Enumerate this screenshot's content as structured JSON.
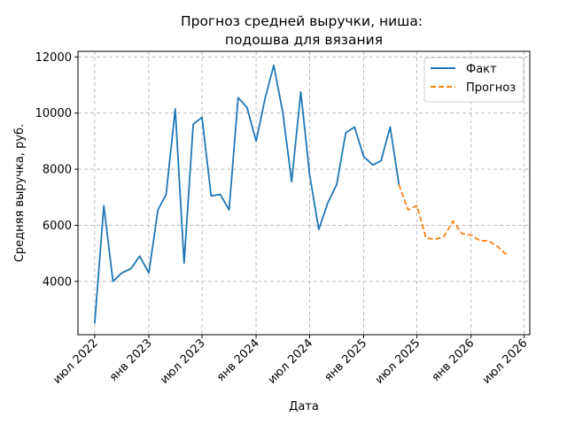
{
  "chart_data": {
    "type": "line",
    "title": "Прогноз средней выручки, ниша:\nподошва для вязания",
    "xlabel": "Дата",
    "ylabel": "Средняя выручка, руб.",
    "xlim": [
      "2022-05-05",
      "2026-07-20"
    ],
    "ylim": [
      2100,
      12200
    ],
    "yticks": [
      4000,
      6000,
      8000,
      10000,
      12000
    ],
    "xticks": [
      {
        "date": "2022-07-01",
        "label": "июл 2022"
      },
      {
        "date": "2023-01-01",
        "label": "янв 2023"
      },
      {
        "date": "2023-07-01",
        "label": "июл 2023"
      },
      {
        "date": "2024-01-01",
        "label": "янв 2024"
      },
      {
        "date": "2024-07-01",
        "label": "июл 2024"
      },
      {
        "date": "2025-01-01",
        "label": "янв 2025"
      },
      {
        "date": "2025-07-01",
        "label": "июл 2025"
      },
      {
        "date": "2026-01-01",
        "label": "янв 2026"
      },
      {
        "date": "2026-07-01",
        "label": "июл 2026"
      }
    ],
    "grid": true,
    "legend_position": "top-right",
    "series": [
      {
        "name": "Факт",
        "style": "solid",
        "color": "#1f77b4",
        "points": [
          {
            "x": "2022-07-01",
            "y": 2500
          },
          {
            "x": "2022-08-01",
            "y": 6700
          },
          {
            "x": "2022-09-01",
            "y": 4000
          },
          {
            "x": "2022-10-01",
            "y": 4300
          },
          {
            "x": "2022-11-01",
            "y": 4450
          },
          {
            "x": "2022-12-01",
            "y": 4900
          },
          {
            "x": "2023-01-01",
            "y": 4300
          },
          {
            "x": "2023-02-01",
            "y": 6550
          },
          {
            "x": "2023-03-01",
            "y": 7100
          },
          {
            "x": "2023-04-01",
            "y": 10150
          },
          {
            "x": "2023-05-01",
            "y": 4650
          },
          {
            "x": "2023-06-01",
            "y": 9600
          },
          {
            "x": "2023-07-01",
            "y": 9850
          },
          {
            "x": "2023-08-01",
            "y": 7050
          },
          {
            "x": "2023-09-01",
            "y": 7100
          },
          {
            "x": "2023-10-01",
            "y": 6550
          },
          {
            "x": "2023-11-01",
            "y": 10550
          },
          {
            "x": "2023-12-01",
            "y": 10200
          },
          {
            "x": "2024-01-01",
            "y": 9000
          },
          {
            "x": "2024-02-01",
            "y": 10550
          },
          {
            "x": "2024-03-01",
            "y": 11700
          },
          {
            "x": "2024-04-01",
            "y": 10000
          },
          {
            "x": "2024-05-01",
            "y": 7550
          },
          {
            "x": "2024-06-01",
            "y": 10750
          },
          {
            "x": "2024-07-01",
            "y": 7800
          },
          {
            "x": "2024-08-01",
            "y": 5850
          },
          {
            "x": "2024-09-01",
            "y": 6800
          },
          {
            "x": "2024-10-01",
            "y": 7450
          },
          {
            "x": "2024-11-01",
            "y": 9300
          },
          {
            "x": "2024-12-01",
            "y": 9500
          },
          {
            "x": "2025-01-01",
            "y": 8450
          },
          {
            "x": "2025-02-01",
            "y": 8150
          },
          {
            "x": "2025-03-01",
            "y": 8300
          },
          {
            "x": "2025-04-01",
            "y": 9500
          },
          {
            "x": "2025-05-01",
            "y": 7450
          }
        ]
      },
      {
        "name": "Прогноз",
        "style": "dashed",
        "color": "#ff7f0e",
        "points": [
          {
            "x": "2025-05-01",
            "y": 7450
          },
          {
            "x": "2025-06-01",
            "y": 6550
          },
          {
            "x": "2025-07-01",
            "y": 6700
          },
          {
            "x": "2025-08-01",
            "y": 5550
          },
          {
            "x": "2025-09-01",
            "y": 5500
          },
          {
            "x": "2025-10-01",
            "y": 5600
          },
          {
            "x": "2025-11-01",
            "y": 6150
          },
          {
            "x": "2025-12-01",
            "y": 5700
          },
          {
            "x": "2026-01-01",
            "y": 5650
          },
          {
            "x": "2026-02-01",
            "y": 5450
          },
          {
            "x": "2026-03-01",
            "y": 5450
          },
          {
            "x": "2026-04-01",
            "y": 5250
          },
          {
            "x": "2026-05-01",
            "y": 4950
          }
        ]
      }
    ]
  }
}
